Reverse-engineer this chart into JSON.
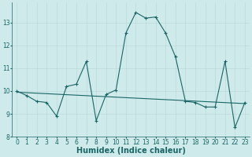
{
  "xlabel": "Humidex (Indice chaleur)",
  "ylabel": "",
  "background_color": "#ceeaea",
  "line_color": "#1a6666",
  "x_values": [
    0,
    1,
    2,
    3,
    4,
    5,
    6,
    7,
    8,
    9,
    10,
    11,
    12,
    13,
    14,
    15,
    16,
    17,
    18,
    19,
    20,
    21,
    22,
    23
  ],
  "y_values": [
    10.0,
    9.8,
    9.55,
    9.5,
    8.9,
    10.2,
    10.3,
    11.3,
    8.7,
    9.85,
    10.05,
    12.55,
    13.45,
    13.2,
    13.25,
    12.55,
    11.5,
    9.55,
    9.5,
    9.3,
    9.3,
    11.3,
    8.4,
    9.5
  ],
  "trend_x": [
    0,
    23
  ],
  "trend_y": [
    9.95,
    9.45
  ],
  "ylim": [
    8.0,
    13.9
  ],
  "xlim": [
    -0.5,
    23.5
  ],
  "yticks": [
    8,
    9,
    10,
    11,
    12,
    13
  ],
  "xticks": [
    0,
    1,
    2,
    3,
    4,
    5,
    6,
    7,
    8,
    9,
    10,
    11,
    12,
    13,
    14,
    15,
    16,
    17,
    18,
    19,
    20,
    21,
    22,
    23
  ],
  "grid_color": "#b8d8d8",
  "tick_fontsize": 5.5,
  "label_fontsize": 7.0,
  "marker": "+",
  "markersize": 3.5,
  "linewidth": 0.8
}
